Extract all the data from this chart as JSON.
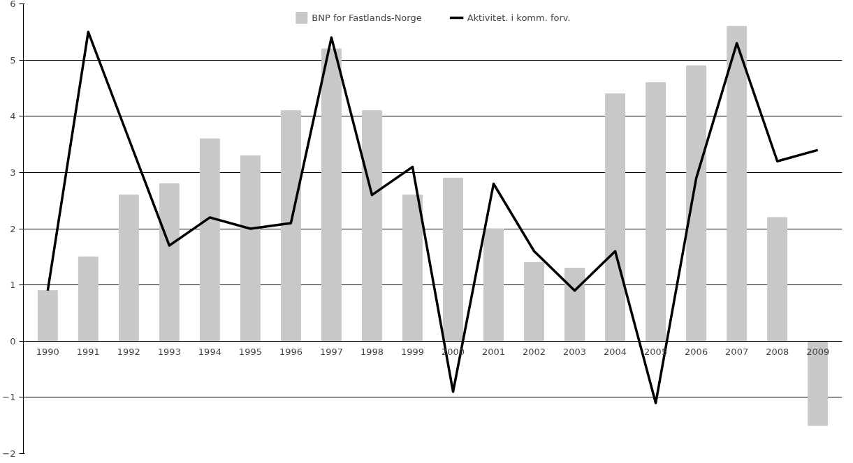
{
  "chart_data": {
    "type": "bar",
    "categories": [
      "1990",
      "1991",
      "1992",
      "1993",
      "1994",
      "1995",
      "1996",
      "1997",
      "1998",
      "1999",
      "2000",
      "2001",
      "2002",
      "2003",
      "2004",
      "2005",
      "2006",
      "2007",
      "2008",
      "2009"
    ],
    "series": [
      {
        "name": "BNP for Fastlands-Norge",
        "color": "#c8c8c8",
        "values": [
          0.9,
          1.5,
          2.6,
          2.8,
          3.6,
          3.3,
          4.1,
          5.2,
          4.1,
          2.6,
          2.9,
          2.0,
          1.4,
          1.3,
          4.4,
          4.6,
          4.9,
          5.6,
          2.2,
          -1.5
        ]
      },
      {
        "name": "Aktivitet. i komm. forv.",
        "type": "line",
        "color": "#000000",
        "values": [
          0.9,
          5.5,
          3.6,
          1.7,
          2.2,
          2.0,
          2.1,
          5.4,
          2.6,
          3.1,
          -0.9,
          2.8,
          1.6,
          0.9,
          1.6,
          -1.1,
          2.9,
          5.3,
          3.2,
          3.4
        ]
      }
    ],
    "ylim": [
      -2,
      6
    ],
    "yticks": [
      -2,
      -1,
      0,
      1,
      2,
      3,
      4,
      5,
      6
    ],
    "grid": "y",
    "legend": "top",
    "marker": "none",
    "line_style": "solid"
  }
}
